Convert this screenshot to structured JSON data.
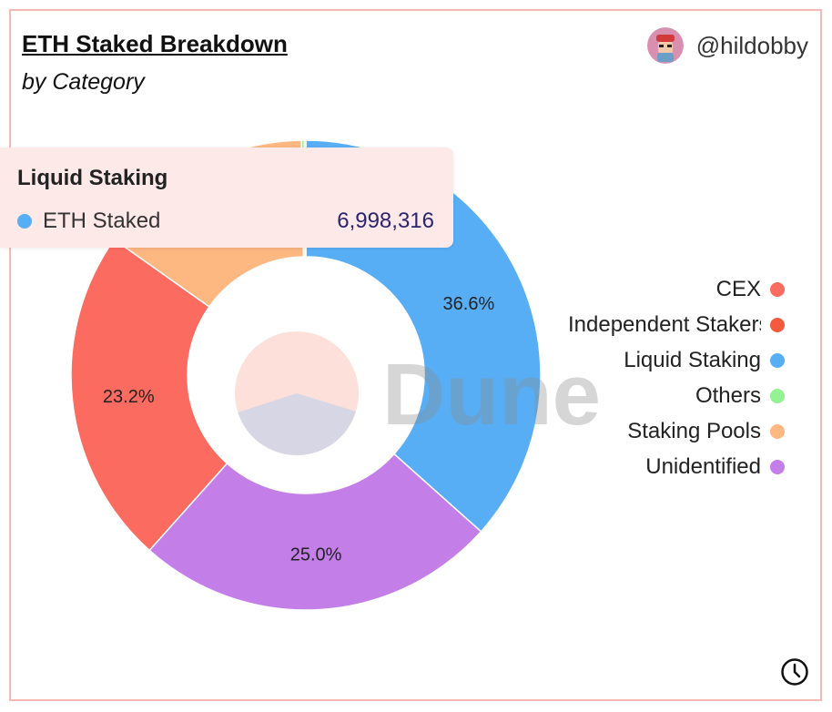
{
  "header": {
    "title": "ETH Staked Breakdown",
    "subtitle": "by Category",
    "author": "@hildobby"
  },
  "watermark": "Dune",
  "tooltip": {
    "title": "Liquid Staking",
    "series": "ETH Staked",
    "value": "6,998,316",
    "color": "#58aef5"
  },
  "legend": [
    {
      "label": "CEX",
      "color": "#fc6b60"
    },
    {
      "label": "Independent Stakers",
      "color": "#f45a3d"
    },
    {
      "label": "Liquid Staking",
      "color": "#58aef5"
    },
    {
      "label": "Others",
      "color": "#93f291"
    },
    {
      "label": "Staking Pools",
      "color": "#fdb781"
    },
    {
      "label": "Unidentified",
      "color": "#c47ee8"
    }
  ],
  "chart_data": {
    "type": "pie",
    "style": "donut",
    "categories": [
      "Liquid Staking",
      "Unidentified",
      "CEX",
      "Staking Pools",
      "Others",
      "Independent Stakers"
    ],
    "values": [
      36.6,
      25.0,
      23.2,
      14.9,
      0.2,
      0.1
    ],
    "unit": "%",
    "data_labels": [
      "36.6%",
      "25.0%",
      "23.2%",
      "",
      "",
      ""
    ],
    "colors": [
      "#58aef5",
      "#c47ee8",
      "#fc6b60",
      "#fdb781",
      "#93f291",
      "#f45a3d"
    ],
    "legend_position": "right"
  }
}
